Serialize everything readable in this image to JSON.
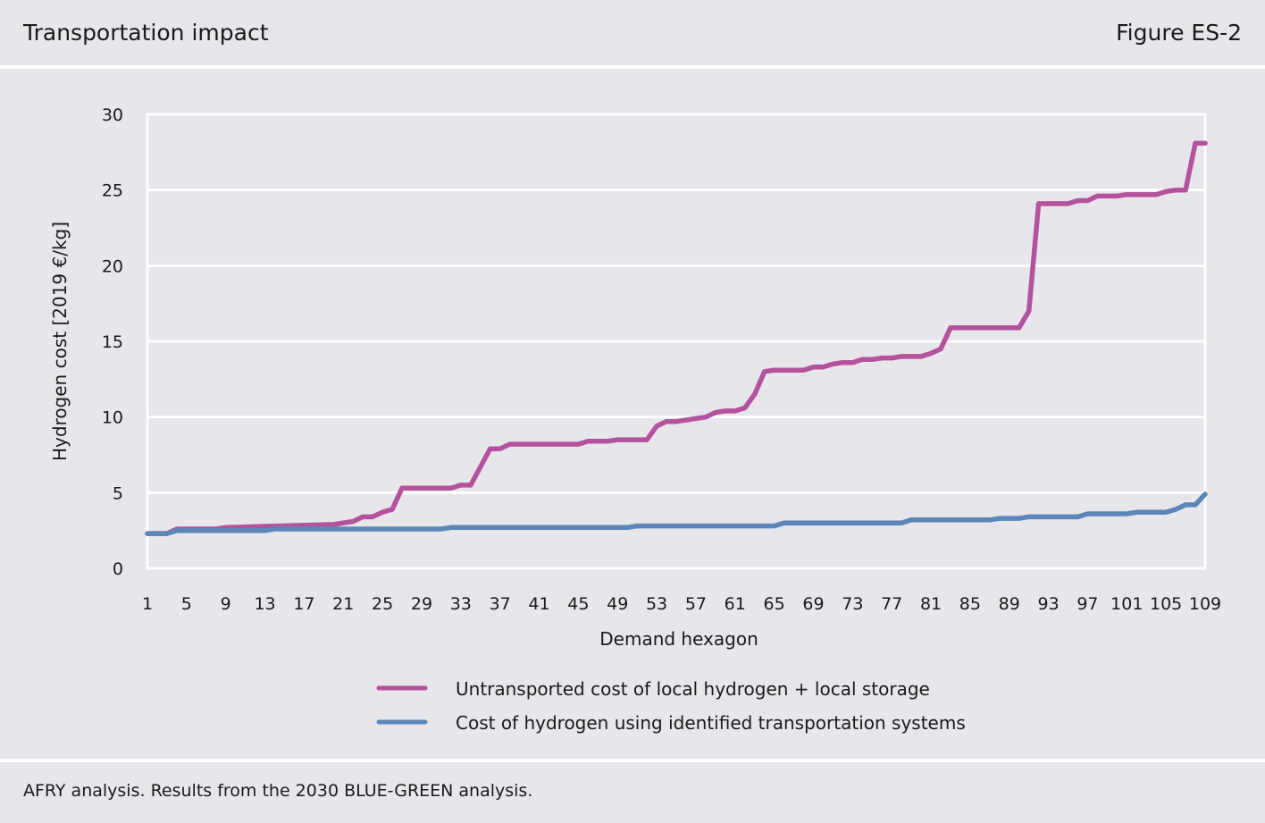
{
  "header": {
    "title": "Transportation impact",
    "figure": "Figure ES-2"
  },
  "footer": {
    "note": "AFRY analysis. Results from the 2030 BLUE-GREEN analysis."
  },
  "chart_data": {
    "type": "line",
    "xlabel": "Demand hexagon",
    "ylabel": "Hydrogen cost [2019 €/kg]",
    "xlim": [
      1,
      109
    ],
    "ylim": [
      0,
      30
    ],
    "yticks": [
      0,
      5,
      10,
      15,
      20,
      25,
      30
    ],
    "xticks": [
      1,
      5,
      9,
      13,
      17,
      21,
      25,
      29,
      33,
      37,
      41,
      45,
      49,
      53,
      57,
      61,
      65,
      69,
      73,
      77,
      81,
      85,
      89,
      93,
      97,
      101,
      105,
      109
    ],
    "grid": true,
    "legend_position": "bottom",
    "series": [
      {
        "name": "Untransported cost of local hydrogen + local storage",
        "color": "#b5529e",
        "points": [
          [
            1,
            2.3
          ],
          [
            3,
            2.3
          ],
          [
            4,
            2.6
          ],
          [
            8,
            2.6
          ],
          [
            9,
            2.7
          ],
          [
            20,
            2.9
          ],
          [
            22,
            3.1
          ],
          [
            23,
            3.4
          ],
          [
            24,
            3.4
          ],
          [
            25,
            3.7
          ],
          [
            26,
            3.9
          ],
          [
            27,
            5.3
          ],
          [
            32,
            5.3
          ],
          [
            33,
            5.5
          ],
          [
            34,
            5.5
          ],
          [
            36,
            7.9
          ],
          [
            37,
            7.9
          ],
          [
            38,
            8.2
          ],
          [
            45,
            8.2
          ],
          [
            46,
            8.4
          ],
          [
            48,
            8.4
          ],
          [
            49,
            8.5
          ],
          [
            52,
            8.5
          ],
          [
            53,
            9.4
          ],
          [
            54,
            9.7
          ],
          [
            55,
            9.7
          ],
          [
            58,
            10.0
          ],
          [
            59,
            10.3
          ],
          [
            60,
            10.4
          ],
          [
            61,
            10.4
          ],
          [
            62,
            10.6
          ],
          [
            63,
            11.5
          ],
          [
            64,
            13.0
          ],
          [
            65,
            13.1
          ],
          [
            68,
            13.1
          ],
          [
            69,
            13.3
          ],
          [
            70,
            13.3
          ],
          [
            71,
            13.5
          ],
          [
            72,
            13.6
          ],
          [
            73,
            13.6
          ],
          [
            74,
            13.8
          ],
          [
            75,
            13.8
          ],
          [
            76,
            13.9
          ],
          [
            77,
            13.9
          ],
          [
            78,
            14.0
          ],
          [
            80,
            14.0
          ],
          [
            81,
            14.2
          ],
          [
            82,
            14.5
          ],
          [
            83,
            15.9
          ],
          [
            90,
            15.9
          ],
          [
            91,
            17.0
          ],
          [
            92,
            24.1
          ],
          [
            95,
            24.1
          ],
          [
            96,
            24.3
          ],
          [
            97,
            24.3
          ],
          [
            98,
            24.6
          ],
          [
            100,
            24.6
          ],
          [
            101,
            24.7
          ],
          [
            104,
            24.7
          ],
          [
            105,
            24.9
          ],
          [
            106,
            25.0
          ],
          [
            107,
            25.0
          ],
          [
            108,
            28.1
          ],
          [
            109,
            28.1
          ]
        ]
      },
      {
        "name": "Cost of hydrogen using identified transportation systems",
        "color": "#5b86b8",
        "points": [
          [
            1,
            2.3
          ],
          [
            3,
            2.3
          ],
          [
            4,
            2.5
          ],
          [
            13,
            2.5
          ],
          [
            14,
            2.6
          ],
          [
            31,
            2.6
          ],
          [
            32,
            2.7
          ],
          [
            50,
            2.7
          ],
          [
            51,
            2.8
          ],
          [
            65,
            2.8
          ],
          [
            66,
            3.0
          ],
          [
            78,
            3.0
          ],
          [
            79,
            3.2
          ],
          [
            87,
            3.2
          ],
          [
            88,
            3.3
          ],
          [
            90,
            3.3
          ],
          [
            91,
            3.4
          ],
          [
            96,
            3.4
          ],
          [
            97,
            3.6
          ],
          [
            101,
            3.6
          ],
          [
            102,
            3.7
          ],
          [
            105,
            3.7
          ],
          [
            106,
            3.9
          ],
          [
            107,
            4.2
          ],
          [
            108,
            4.2
          ],
          [
            109,
            4.9
          ]
        ]
      }
    ]
  }
}
